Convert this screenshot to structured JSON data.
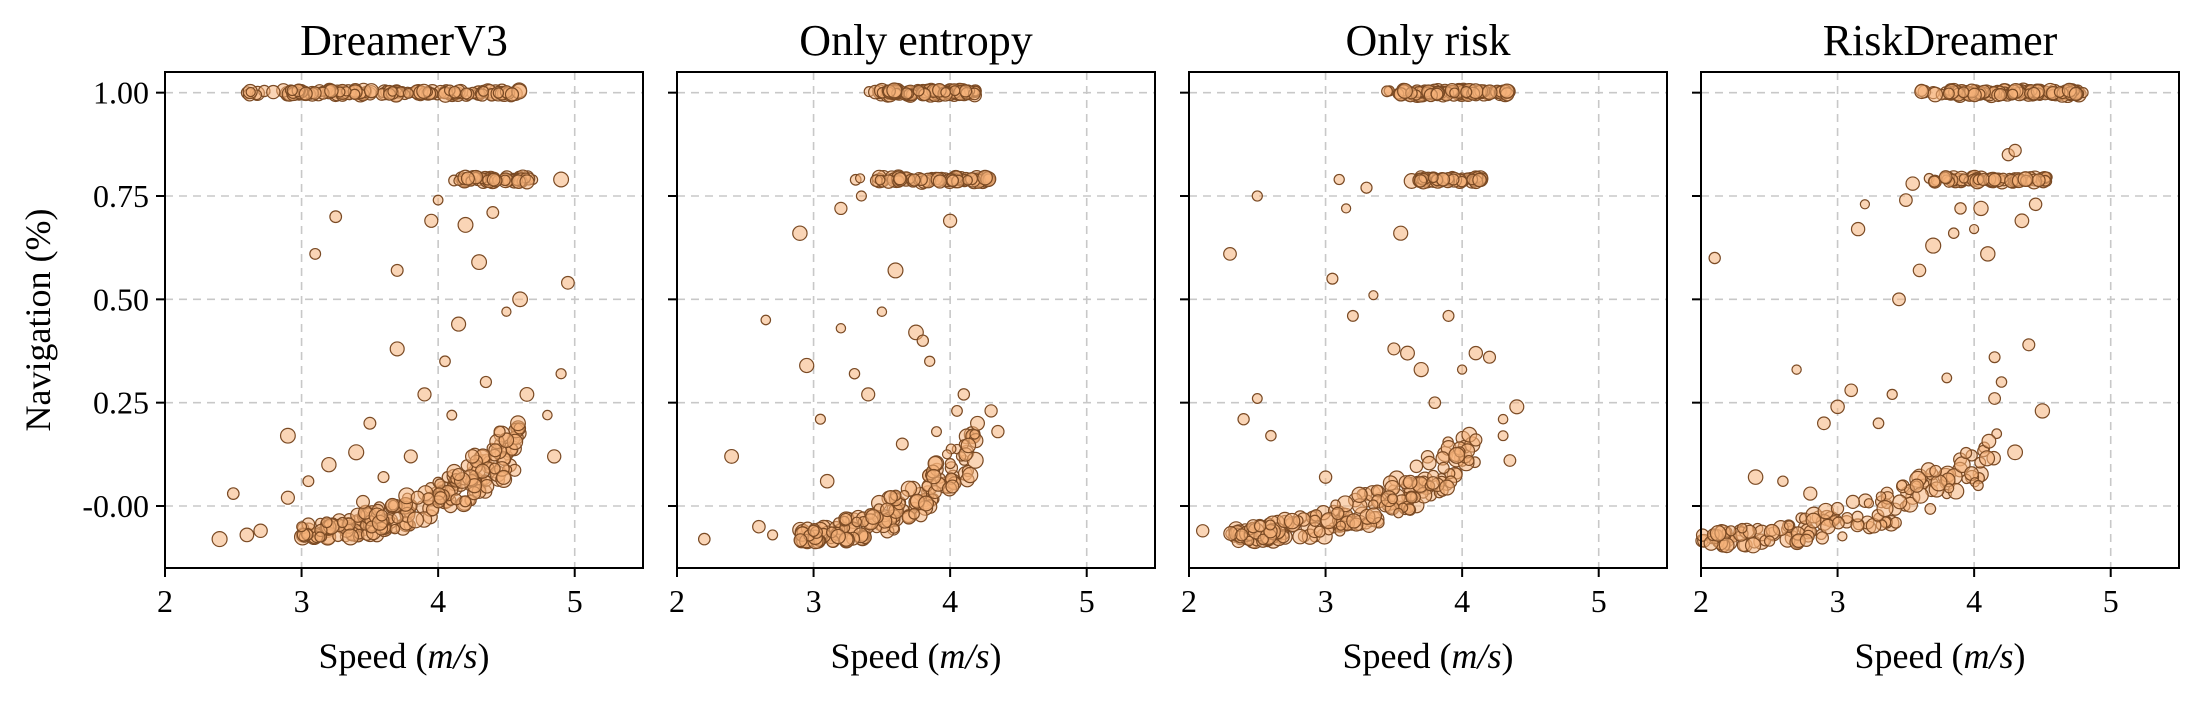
{
  "chart_data": [
    {
      "type": "scatter",
      "title": "DreamerV3",
      "xlabel": "Speed (m/s)",
      "ylabel": "Navigation (%)",
      "xlim": [
        2,
        5.5
      ],
      "ylim": [
        -0.15,
        1.05
      ],
      "xticks": [
        "2",
        "3",
        "4",
        "5"
      ],
      "yticks": [
        "-0.00",
        "0.25",
        "0.50",
        "0.75",
        "1.00"
      ],
      "grid": true,
      "colors": {
        "fill": "#f5b37a",
        "edge": "#7a4a24"
      },
      "clusters": [
        {
          "x_range": [
            2.6,
            4.6
          ],
          "y": 1.0,
          "count": 160
        },
        {
          "x_range": [
            4.1,
            4.7
          ],
          "y": 0.79,
          "count": 55
        }
      ],
      "points": [
        [
          2.4,
          -0.08
        ],
        [
          2.5,
          0.03
        ],
        [
          2.6,
          -0.07
        ],
        [
          2.7,
          -0.06
        ],
        [
          2.9,
          0.17
        ],
        [
          2.9,
          0.02
        ],
        [
          3.0,
          -0.05
        ],
        [
          3.05,
          0.06
        ],
        [
          3.1,
          0.61
        ],
        [
          3.2,
          0.1
        ],
        [
          3.25,
          0.7
        ],
        [
          3.3,
          -0.04
        ],
        [
          3.4,
          0.13
        ],
        [
          3.45,
          0.01
        ],
        [
          3.5,
          0.2
        ],
        [
          3.6,
          0.07
        ],
        [
          3.7,
          0.57
        ],
        [
          3.7,
          0.38
        ],
        [
          3.8,
          0.12
        ],
        [
          3.85,
          0.02
        ],
        [
          3.9,
          0.27
        ],
        [
          3.95,
          0.69
        ],
        [
          4.0,
          0.74
        ],
        [
          4.05,
          0.35
        ],
        [
          4.1,
          0.22
        ],
        [
          4.15,
          0.44
        ],
        [
          4.2,
          0.68
        ],
        [
          4.25,
          0.12
        ],
        [
          4.3,
          0.59
        ],
        [
          4.35,
          0.3
        ],
        [
          4.4,
          0.71
        ],
        [
          4.45,
          0.18
        ],
        [
          4.5,
          0.47
        ],
        [
          4.6,
          0.5
        ],
        [
          4.65,
          0.27
        ],
        [
          4.8,
          0.22
        ],
        [
          4.85,
          0.12
        ],
        [
          4.9,
          0.32
        ],
        [
          4.95,
          0.54
        ],
        [
          4.9,
          0.79
        ]
      ],
      "bulk": {
        "x_range": [
          3.0,
          4.6
        ],
        "y_floor": -0.07,
        "count": 230
      }
    },
    {
      "type": "scatter",
      "title": "Only entropy",
      "xlabel": "Speed (m/s)",
      "ylabel": "",
      "xlim": [
        2,
        5.5
      ],
      "ylim": [
        -0.15,
        1.05
      ],
      "xticks": [
        "2",
        "3",
        "4",
        "5"
      ],
      "grid": true,
      "clusters": [
        {
          "x_range": [
            3.4,
            4.2
          ],
          "y": 1.0,
          "count": 110
        },
        {
          "x_range": [
            3.3,
            4.3
          ],
          "y": 0.79,
          "count": 80
        }
      ],
      "points": [
        [
          2.2,
          -0.08
        ],
        [
          2.4,
          0.12
        ],
        [
          2.6,
          -0.05
        ],
        [
          2.65,
          0.45
        ],
        [
          2.7,
          -0.07
        ],
        [
          2.9,
          0.66
        ],
        [
          2.95,
          0.34
        ],
        [
          3.0,
          -0.06
        ],
        [
          3.05,
          0.21
        ],
        [
          3.1,
          0.06
        ],
        [
          3.2,
          0.72
        ],
        [
          3.2,
          0.43
        ],
        [
          3.3,
          0.32
        ],
        [
          3.35,
          0.75
        ],
        [
          3.4,
          0.27
        ],
        [
          3.5,
          0.47
        ],
        [
          3.6,
          0.57
        ],
        [
          3.65,
          0.15
        ],
        [
          3.75,
          0.42
        ],
        [
          3.8,
          0.4
        ],
        [
          3.85,
          0.35
        ],
        [
          3.9,
          0.18
        ],
        [
          4.0,
          0.69
        ],
        [
          4.05,
          0.23
        ],
        [
          4.1,
          0.27
        ],
        [
          4.2,
          0.2
        ],
        [
          4.3,
          0.23
        ],
        [
          4.35,
          0.18
        ]
      ],
      "bulk": {
        "x_range": [
          2.9,
          4.2
        ],
        "y_floor": -0.08,
        "count": 170
      }
    },
    {
      "type": "scatter",
      "title": "Only risk",
      "xlabel": "Speed (m/s)",
      "ylabel": "",
      "xlim": [
        2,
        5.5
      ],
      "ylim": [
        -0.15,
        1.05
      ],
      "xticks": [
        "2",
        "3",
        "4",
        "5"
      ],
      "grid": true,
      "clusters": [
        {
          "x_range": [
            3.4,
            4.35
          ],
          "y": 1.0,
          "count": 120
        },
        {
          "x_range": [
            3.6,
            4.15
          ],
          "y": 0.79,
          "count": 60
        }
      ],
      "points": [
        [
          2.1,
          -0.06
        ],
        [
          2.3,
          0.61
        ],
        [
          2.4,
          0.21
        ],
        [
          2.5,
          0.26
        ],
        [
          2.5,
          0.75
        ],
        [
          2.6,
          0.17
        ],
        [
          3.0,
          0.07
        ],
        [
          3.05,
          0.55
        ],
        [
          3.1,
          0.79
        ],
        [
          3.15,
          0.72
        ],
        [
          3.2,
          0.46
        ],
        [
          3.3,
          0.77
        ],
        [
          3.35,
          0.51
        ],
        [
          3.5,
          0.38
        ],
        [
          3.55,
          0.66
        ],
        [
          3.6,
          0.37
        ],
        [
          3.7,
          0.33
        ],
        [
          3.8,
          0.25
        ],
        [
          3.9,
          0.46
        ],
        [
          4.0,
          0.33
        ],
        [
          4.05,
          0.11
        ],
        [
          4.1,
          0.37
        ],
        [
          4.2,
          0.36
        ],
        [
          4.3,
          0.21
        ],
        [
          4.35,
          0.11
        ],
        [
          4.4,
          0.24
        ],
        [
          4.3,
          0.17
        ],
        [
          4.1,
          0.16
        ]
      ],
      "bulk": {
        "x_range": [
          2.3,
          4.1
        ],
        "y_floor": -0.08,
        "count": 200
      }
    },
    {
      "type": "scatter",
      "title": "RiskDreamer",
      "xlabel": "Speed (m/s)",
      "ylabel": "",
      "xlim": [
        2,
        5.5
      ],
      "ylim": [
        -0.15,
        1.05
      ],
      "xticks": [
        "2",
        "3",
        "4",
        "5"
      ],
      "grid": true,
      "clusters": [
        {
          "x_range": [
            3.6,
            4.8
          ],
          "y": 1.0,
          "count": 130
        },
        {
          "x_range": [
            3.6,
            4.55
          ],
          "y": 0.79,
          "count": 75
        }
      ],
      "points": [
        [
          2.1,
          0.6
        ],
        [
          2.4,
          0.07
        ],
        [
          2.6,
          0.06
        ],
        [
          2.7,
          0.33
        ],
        [
          2.8,
          0.03
        ],
        [
          2.9,
          0.2
        ],
        [
          3.0,
          0.24
        ],
        [
          3.1,
          0.28
        ],
        [
          3.15,
          0.67
        ],
        [
          3.2,
          0.73
        ],
        [
          3.3,
          0.2
        ],
        [
          3.4,
          0.27
        ],
        [
          3.45,
          0.5
        ],
        [
          3.5,
          0.74
        ],
        [
          3.55,
          0.78
        ],
        [
          3.6,
          0.57
        ],
        [
          3.7,
          0.63
        ],
        [
          3.8,
          0.31
        ],
        [
          3.85,
          0.66
        ],
        [
          3.9,
          0.72
        ],
        [
          4.0,
          0.67
        ],
        [
          4.05,
          0.72
        ],
        [
          4.1,
          0.61
        ],
        [
          4.15,
          0.36
        ],
        [
          4.2,
          0.3
        ],
        [
          4.25,
          0.85
        ],
        [
          4.3,
          0.86
        ],
        [
          4.35,
          0.69
        ],
        [
          4.4,
          0.39
        ],
        [
          4.45,
          0.73
        ],
        [
          4.5,
          0.23
        ],
        [
          4.3,
          0.13
        ],
        [
          4.15,
          0.26
        ]
      ],
      "bulk": {
        "x_range": [
          2.0,
          4.2
        ],
        "y_floor": -0.09,
        "count": 150
      }
    }
  ]
}
